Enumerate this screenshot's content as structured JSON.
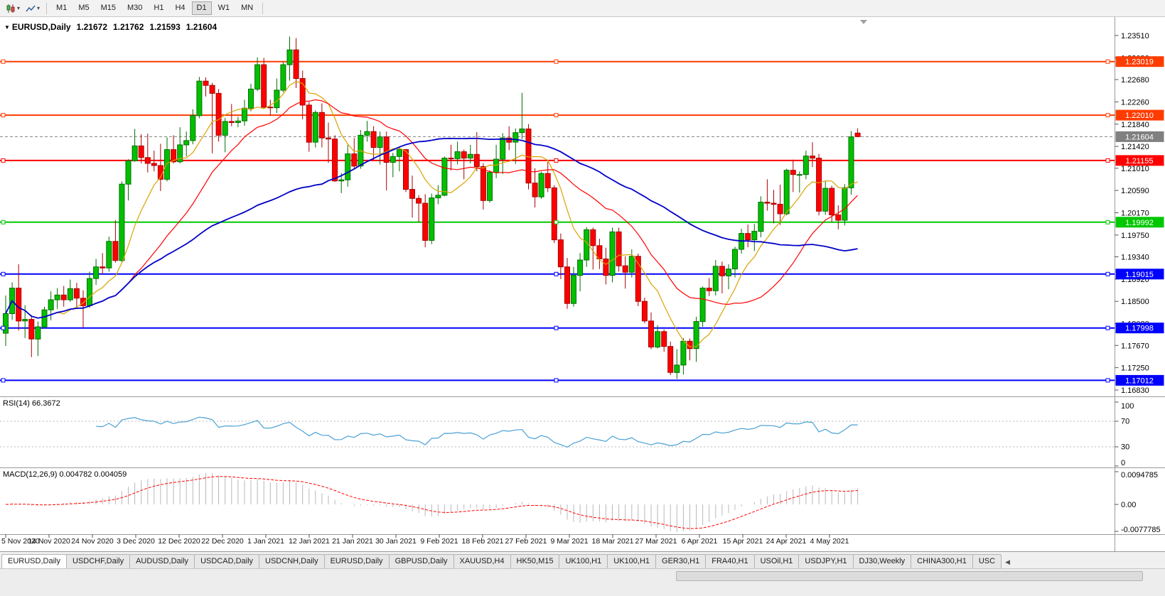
{
  "toolbar": {
    "timeframes": [
      "M1",
      "M5",
      "M15",
      "M30",
      "H1",
      "H4",
      "D1",
      "W1",
      "MN"
    ],
    "active_timeframe": "D1"
  },
  "chart_title": {
    "arrow": "▼",
    "symbol": "EURUSD,Daily",
    "open": "1.21672",
    "high": "1.21762",
    "low": "1.21593",
    "close": "1.21604"
  },
  "bottom_tabs": {
    "active_index": 0,
    "scroll_left_arrow": "◀",
    "tabs": [
      "EURUSD,Daily",
      "USDCHF,Daily",
      "AUDUSD,Daily",
      "USDCAD,Daily",
      "USDCNH,Daily",
      "EURUSD,Daily",
      "GBPUSD,Daily",
      "XAUUSD,H4",
      "HK50,M15",
      "UK100,H1",
      "UK100,H1",
      "GER30,H1",
      "FRA40,H1",
      "USOil,H1",
      "USDJPY,H1",
      "DJ30,Weekly",
      "CHINA300,H1",
      "USC"
    ]
  },
  "chart_data": {
    "type": "candlestick",
    "symbol": "EURUSD",
    "timeframe": "Daily",
    "view": {
      "price_max": 1.2351,
      "price_min": 1.1683
    },
    "price_axis_ticks": [
      "1.23510",
      "1.23090",
      "1.22680",
      "1.22260",
      "1.21840",
      "1.21420",
      "1.21010",
      "1.20590",
      "1.20170",
      "1.19750",
      "1.19340",
      "1.18920",
      "1.18500",
      "1.18080",
      "1.17670",
      "1.17250",
      "1.16830"
    ],
    "x_labels": [
      "5 Nov 2020",
      "14 Nov 2020",
      "24 Nov 2020",
      "3 Dec 2020",
      "12 Dec 2020",
      "22 Dec 2020",
      "1 Jan 2021",
      "12 Jan 2021",
      "21 Jan 2021",
      "30 Jan 2021",
      "9 Feb 2021",
      "18 Feb 2021",
      "27 Feb 2021",
      "9 Mar 2021",
      "18 Mar 2021",
      "27 Mar 2021",
      "6 Apr 2021",
      "15 Apr 2021",
      "24 Apr 2021",
      "4 May 2021"
    ],
    "hlines": [
      {
        "value": 1.23019,
        "label": "1.23019",
        "color": "#ff3c00",
        "width": 2
      },
      {
        "value": 1.2201,
        "label": "1.22010",
        "color": "#ff3c00",
        "width": 2
      },
      {
        "value": 1.21155,
        "label": "1.21155",
        "color": "#ff0000",
        "width": 2
      },
      {
        "value": 1.19992,
        "label": "1.19992",
        "color": "#00c800",
        "width": 2
      },
      {
        "value": 1.19015,
        "label": "1.19015",
        "color": "#0000ff",
        "width": 2
      },
      {
        "value": 1.17998,
        "label": "1.17998",
        "color": "#0000ff",
        "width": 2
      },
      {
        "value": 1.17012,
        "label": "1.17012",
        "color": "#0000ff",
        "width": 2
      }
    ],
    "bid": {
      "value": 1.21604,
      "label": "1.21604",
      "color": "#808080"
    },
    "moving_averages": [
      {
        "name": "fast",
        "period": 8,
        "color": "#d9a300",
        "width": 1.2
      },
      {
        "name": "medium",
        "period": 20,
        "color": "#ff0000",
        "width": 1.2
      },
      {
        "name": "slow",
        "period": 50,
        "color": "#0000c8",
        "width": 1.8
      }
    ],
    "rsi": {
      "label": "RSI(14) 66.3672",
      "period": 14,
      "value": 66.3672,
      "range": [
        0,
        100
      ],
      "levels": [
        70,
        30
      ],
      "axis_ticks": [
        "100",
        "70",
        "30",
        "0"
      ],
      "color": "#4aa0d5"
    },
    "macd": {
      "label": "MACD(12,26,9) 0.004782 0.004059",
      "fast": 12,
      "slow": 26,
      "signal_period": 9,
      "value": 0.004782,
      "signal_value": 0.004059,
      "axis_max": 0.0094785,
      "axis_min": -0.0077785,
      "axis_ticks": [
        "0.0094785",
        "0.00",
        "-0.0077785"
      ],
      "histogram_color": "#b8b8b8",
      "signal_color": "#ff0000"
    },
    "colors": {
      "background": "#ffffff",
      "axis_line": "#9a9a9a",
      "up_fill": "#00c000",
      "up_stroke": "#006e00",
      "down_fill": "#ff0000",
      "down_stroke": "#a80000"
    },
    "candles": {
      "open": [
        1.179,
        1.1827,
        1.1875,
        1.1813,
        1.1816,
        1.1779,
        1.1802,
        1.1834,
        1.1853,
        1.1862,
        1.1853,
        1.1874,
        1.1856,
        1.1842,
        1.1893,
        1.1915,
        1.1913,
        1.1963,
        1.1927,
        1.2071,
        1.2115,
        1.2143,
        1.2121,
        1.211,
        1.2106,
        1.208,
        1.2136,
        1.2113,
        1.2145,
        1.2153,
        1.22,
        1.2265,
        1.2257,
        1.2242,
        1.2163,
        1.2189,
        1.2187,
        1.219,
        1.2214,
        1.225,
        1.2296,
        1.2216,
        1.2215,
        1.2248,
        1.2296,
        1.2324,
        1.227,
        1.222,
        1.215,
        1.2206,
        1.2158,
        1.2156,
        1.2077,
        1.2079,
        1.2128,
        1.2105,
        1.2163,
        1.217,
        1.214,
        1.216,
        1.2112,
        1.2123,
        1.2136,
        1.2061,
        1.2044,
        1.2035,
        1.1965,
        1.2045,
        1.205,
        1.212,
        1.2119,
        1.2132,
        1.212,
        1.2127,
        1.2104,
        1.204,
        1.2093,
        1.2118,
        1.2158,
        1.215,
        1.2168,
        1.2175,
        1.2073,
        1.2047,
        1.2091,
        1.2064,
        1.1966,
        1.1915,
        1.1846,
        1.1899,
        1.1928,
        1.1985,
        1.1955,
        1.193,
        1.1899,
        1.1981,
        1.1917,
        1.1905,
        1.1935,
        1.185,
        1.1813,
        1.1764,
        1.1793,
        1.1765,
        1.1716,
        1.173,
        1.1775,
        1.1761,
        1.1812,
        1.1875,
        1.187,
        1.1916,
        1.1898,
        1.1911,
        1.1948,
        1.1978,
        1.1966,
        1.1982,
        1.2037,
        1.2035,
        1.2033,
        1.2015,
        1.2097,
        1.2089,
        1.2089,
        1.2124,
        1.212,
        1.202,
        1.2063,
        1.2013,
        1.2003,
        1.2064,
        1.21672
      ],
      "high": [
        1.1861,
        1.1886,
        1.192,
        1.1843,
        1.1824,
        1.1812,
        1.184,
        1.1869,
        1.1875,
        1.1879,
        1.1891,
        1.1885,
        1.1871,
        1.1906,
        1.193,
        1.1941,
        1.1972,
        1.2003,
        1.2076,
        1.2118,
        1.2175,
        1.2165,
        1.2166,
        1.2134,
        1.2147,
        1.2159,
        1.2163,
        1.2178,
        1.217,
        1.2212,
        1.2273,
        1.2272,
        1.2262,
        1.225,
        1.2196,
        1.2222,
        1.2198,
        1.223,
        1.226,
        1.231,
        1.2309,
        1.223,
        1.227,
        1.2301,
        1.2349,
        1.2346,
        1.2285,
        1.2226,
        1.221,
        1.2223,
        1.2187,
        1.2163,
        1.2092,
        1.2145,
        1.2158,
        1.2173,
        1.219,
        1.218,
        1.217,
        1.217,
        1.213,
        1.2142,
        1.2137,
        1.2087,
        1.205,
        1.2052,
        1.2053,
        1.2069,
        1.2123,
        1.2145,
        1.2151,
        1.2136,
        1.2145,
        1.2169,
        1.211,
        1.2097,
        1.2145,
        1.2167,
        1.218,
        1.2176,
        1.2243,
        1.2184,
        1.2101,
        1.2094,
        1.2113,
        1.2069,
        1.1978,
        1.1932,
        1.1915,
        1.1941,
        1.199,
        1.1989,
        1.1968,
        1.1951,
        1.1989,
        1.1989,
        1.1935,
        1.1948,
        1.194,
        1.1857,
        1.1829,
        1.1805,
        1.1797,
        1.1774,
        1.176,
        1.1781,
        1.178,
        1.1821,
        1.1878,
        1.1894,
        1.1928,
        1.1925,
        1.192,
        1.1953,
        1.1987,
        1.1995,
        1.1996,
        1.2048,
        1.208,
        1.206,
        1.207,
        1.21,
        1.2117,
        1.2095,
        1.2134,
        1.215,
        1.2128,
        1.2076,
        1.2068,
        1.2031,
        1.2071,
        1.2171,
        1.21762
      ],
      "low": [
        1.1766,
        1.1815,
        1.1795,
        1.1781,
        1.1745,
        1.1747,
        1.1799,
        1.1814,
        1.1836,
        1.184,
        1.1849,
        1.1836,
        1.18,
        1.1838,
        1.1881,
        1.1901,
        1.1906,
        1.1923,
        1.1924,
        1.204,
        1.2113,
        1.211,
        1.2093,
        1.2095,
        1.2058,
        1.2076,
        1.211,
        1.211,
        1.2123,
        1.2146,
        1.2195,
        1.2236,
        1.2129,
        1.2151,
        1.2131,
        1.218,
        1.2178,
        1.2181,
        1.2208,
        1.2246,
        1.2214,
        1.22,
        1.2205,
        1.2244,
        1.2266,
        1.2252,
        1.2193,
        1.2132,
        1.214,
        1.214,
        1.2111,
        1.2075,
        1.2054,
        1.2066,
        1.2101,
        1.21,
        1.2151,
        1.2116,
        1.2108,
        1.2059,
        1.2084,
        1.2095,
        1.2056,
        1.2008,
        1.1999,
        1.1952,
        1.1958,
        1.2033,
        1.2048,
        1.2097,
        1.2108,
        1.208,
        1.211,
        1.2095,
        1.2023,
        1.2036,
        1.2082,
        1.209,
        1.2135,
        1.2109,
        1.2156,
        1.2061,
        1.2027,
        1.2043,
        1.2056,
        1.196,
        1.1892,
        1.1836,
        1.184,
        1.1869,
        1.1915,
        1.191,
        1.1911,
        1.1882,
        1.1886,
        1.1906,
        1.1874,
        1.1895,
        1.1841,
        1.1809,
        1.176,
        1.1761,
        1.1755,
        1.1711,
        1.1704,
        1.1712,
        1.1739,
        1.1736,
        1.1802,
        1.186,
        1.1861,
        1.1865,
        1.1873,
        1.1895,
        1.194,
        1.1952,
        1.1945,
        1.1971,
        1.2021,
        1.1997,
        1.1994,
        1.2012,
        1.2056,
        1.2055,
        1.208,
        1.2103,
        1.2012,
        1.2013,
        1.1999,
        1.1986,
        1.1993,
        1.2051,
        1.21593
      ],
      "close": [
        1.1827,
        1.1875,
        1.1813,
        1.1816,
        1.1779,
        1.1802,
        1.1834,
        1.1853,
        1.1862,
        1.1853,
        1.1874,
        1.1856,
        1.1842,
        1.1893,
        1.1915,
        1.1913,
        1.1963,
        1.1927,
        1.2071,
        1.2115,
        1.2143,
        1.2121,
        1.211,
        1.2106,
        1.208,
        1.2136,
        1.2113,
        1.2145,
        1.2153,
        1.22,
        1.2265,
        1.2257,
        1.2242,
        1.2163,
        1.2189,
        1.2187,
        1.219,
        1.2214,
        1.225,
        1.2296,
        1.2216,
        1.2215,
        1.2248,
        1.2296,
        1.2324,
        1.227,
        1.222,
        1.215,
        1.2206,
        1.2158,
        1.2156,
        1.2077,
        1.2079,
        1.2128,
        1.2105,
        1.2163,
        1.217,
        1.214,
        1.216,
        1.2112,
        1.2123,
        1.2136,
        1.2061,
        1.2044,
        1.2035,
        1.1965,
        1.2045,
        1.205,
        1.212,
        1.2119,
        1.2132,
        1.212,
        1.2127,
        1.2104,
        1.204,
        1.2093,
        1.2118,
        1.2158,
        1.215,
        1.2168,
        1.2175,
        1.2073,
        1.2047,
        1.2091,
        1.2064,
        1.1966,
        1.1915,
        1.1846,
        1.1899,
        1.1928,
        1.1985,
        1.1955,
        1.193,
        1.1899,
        1.1981,
        1.1917,
        1.1905,
        1.1935,
        1.185,
        1.1813,
        1.1764,
        1.1793,
        1.1765,
        1.1716,
        1.173,
        1.1775,
        1.1761,
        1.1812,
        1.1875,
        1.187,
        1.1916,
        1.1898,
        1.1911,
        1.1948,
        1.1978,
        1.1966,
        1.1982,
        1.2037,
        1.2035,
        1.2033,
        1.2015,
        1.2097,
        1.2089,
        1.2089,
        1.2124,
        1.212,
        1.202,
        1.2063,
        1.2013,
        1.2003,
        1.2064,
        1.216,
        1.21604
      ]
    }
  }
}
